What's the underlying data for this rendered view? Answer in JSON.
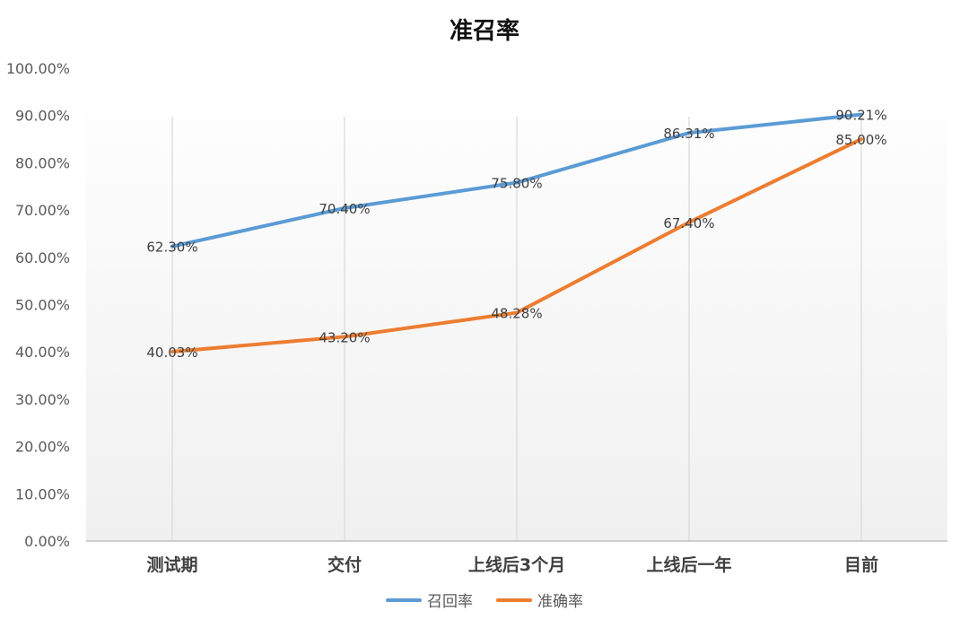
{
  "chart_data": {
    "type": "line",
    "title": "准召率",
    "categories": [
      "测试期",
      "交付",
      "上线后3个月",
      "上线后一年",
      "目前"
    ],
    "ylim": [
      0,
      100
    ],
    "y_tick_step": 10,
    "y_tick_labels": [
      "0.00%",
      "10.00%",
      "20.00%",
      "30.00%",
      "40.00%",
      "50.00%",
      "60.00%",
      "70.00%",
      "80.00%",
      "90.00%",
      "100.00%"
    ],
    "grid": "vertical lines at categories",
    "legend_position": "bottom",
    "series": [
      {
        "name": "召回率",
        "values": [
          62.3,
          70.4,
          75.8,
          86.31,
          90.21
        ],
        "labels": [
          "62.30%",
          "70.40%",
          "75.80%",
          "86.31%",
          "90.21%"
        ],
        "color": "#5B9BD5"
      },
      {
        "name": "准确率",
        "values": [
          40.03,
          43.2,
          48.28,
          67.4,
          85.0
        ],
        "labels": [
          "40.03%",
          "43.20%",
          "48.28%",
          "67.40%",
          "85.00%"
        ],
        "color": "#ED7D31"
      }
    ]
  }
}
